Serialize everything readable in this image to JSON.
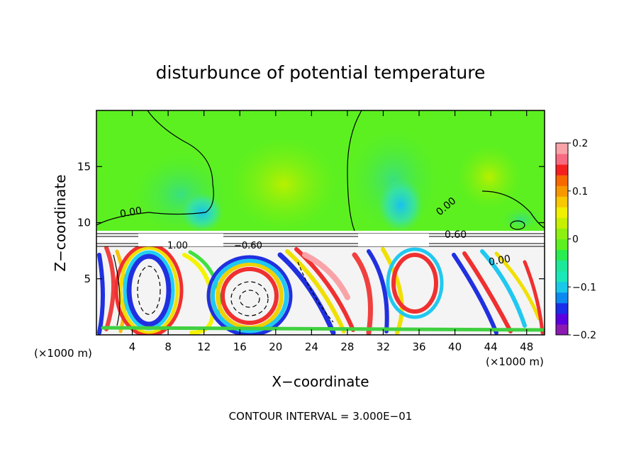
{
  "chart_data": {
    "type": "heatmap",
    "title": "disturbunce of potential temperature",
    "xlabel": "X−coordinate",
    "ylabel": "Z−coordinate",
    "x_unit": "(×1000 m)",
    "x_unit_right": "(×1000 m)",
    "xlim": [
      0,
      50
    ],
    "ylim": [
      0,
      20
    ],
    "xticks": [
      4,
      8,
      12,
      16,
      20,
      24,
      28,
      32,
      36,
      40,
      44,
      48
    ],
    "yticks": [
      5,
      10,
      15
    ],
    "colorbar": {
      "range": [
        -0.2,
        0.2
      ],
      "ticks": [
        "0.2",
        "0.1",
        "0",
        "−0.1",
        "−0.2"
      ],
      "colors": [
        "#8a1ab0",
        "#5a00e0",
        "#1a2de8",
        "#0a8af0",
        "#1ac8e8",
        "#1ae8b8",
        "#1ee89a",
        "#28ec50",
        "#5ef020",
        "#8ef010",
        "#c6f000",
        "#f0f000",
        "#f8c800",
        "#f89800",
        "#f86800",
        "#f42020",
        "#f86a80",
        "#f9a3a8"
      ]
    },
    "contour_labels": [
      "0.00",
      "0.00",
      "0.00",
      "0.60",
      "1.00",
      "−0.60"
    ],
    "footer": "CONTOUR INTERVAL = 3.000E−01"
  }
}
